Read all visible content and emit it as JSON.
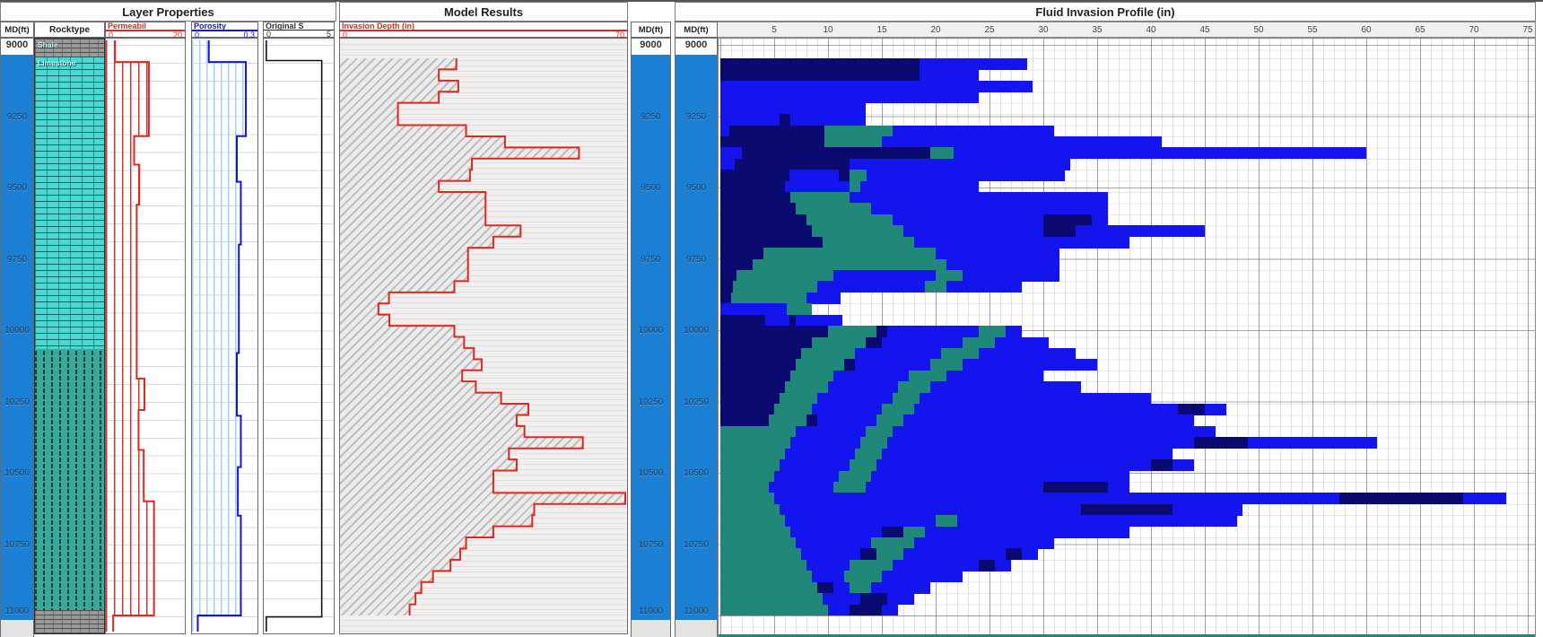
{
  "panels": {
    "layer_properties": {
      "title": "Layer Properties",
      "md_header": "MD(ft)",
      "rock_header": "Rocktype",
      "perm": {
        "name": "Permeabil",
        "min": "0",
        "max": "20"
      },
      "poro": {
        "name": "Porosity",
        "min": "0",
        "max": "0.3"
      },
      "origs": {
        "name": "Original S",
        "min": "0",
        "max": "5"
      }
    },
    "model_results": {
      "title": "Model Results",
      "md_header": "MD(ft)",
      "track": {
        "name": "Invasion Depth (in)",
        "min": "0",
        "max": "70"
      }
    },
    "fluid_profile": {
      "title": "Fluid Invasion Profile (in)",
      "md_header": "MD(ft)",
      "x_ticks": [
        "5",
        "10",
        "15",
        "20",
        "25",
        "30",
        "35",
        "40",
        "45",
        "50",
        "55",
        "60",
        "65",
        "70",
        "75"
      ]
    }
  },
  "depth_axis": {
    "top_label": "9000",
    "labels": [
      "9250",
      "9500",
      "9750",
      "10000",
      "10250",
      "10500",
      "10750",
      "11000"
    ],
    "start_ft": 9000,
    "end_ft": 11000
  },
  "colors": {
    "n": "#0a0a70",
    "b": "#1414ee",
    "t": "#1f8878",
    "md_blue": "#1b80d4",
    "curve_red": "#e02820",
    "curve_blue": "#1414dd",
    "curve_black": "#111111"
  },
  "chart_data": {
    "type": "heatmap",
    "title": "Fluid Invasion Profile (in)",
    "depth_range_ft": [
      9000,
      11000
    ],
    "x_range_in": [
      0,
      75
    ],
    "rocktype_intervals": [
      {
        "label": "Shale",
        "from_ft": 8980,
        "to_ft": 9060,
        "pattern": "shale"
      },
      {
        "label": "Limestone",
        "from_ft": 9060,
        "to_ft": 10085,
        "pattern": "limestone"
      },
      {
        "label": "",
        "from_ft": 10085,
        "to_ft": 11000,
        "pattern": "limestone2"
      },
      {
        "label": "",
        "from_ft": 11000,
        "to_ft": 11090,
        "pattern": "shale"
      }
    ],
    "permeability_md": {
      "min": 0,
      "max": 20,
      "steps": [
        [
          8980,
          2
        ],
        [
          9060,
          11.2
        ],
        [
          9320,
          7.2
        ],
        [
          9420,
          8.6
        ],
        [
          9560,
          7.9
        ],
        [
          10170,
          10
        ],
        [
          10280,
          8.4
        ],
        [
          10420,
          9.8
        ],
        [
          10600,
          12.6
        ],
        [
          11000,
          1.5
        ],
        [
          11090,
          1.5
        ]
      ]
    },
    "porosity_frac": {
      "min": 0,
      "max": 0.3,
      "steps": [
        [
          8980,
          0.075
        ],
        [
          9060,
          0.26
        ],
        [
          9320,
          0.215
        ],
        [
          9480,
          0.235
        ],
        [
          9700,
          0.225
        ],
        [
          10080,
          0.215
        ],
        [
          10300,
          0.235
        ],
        [
          10480,
          0.22
        ],
        [
          10650,
          0.235
        ],
        [
          11000,
          0.02
        ],
        [
          11090,
          0.02
        ]
      ]
    },
    "original_s": {
      "min": 0,
      "max": 5,
      "steps": [
        [
          8980,
          0.06
        ],
        [
          9055,
          4.35
        ],
        [
          11005,
          0.06
        ],
        [
          11090,
          0.06
        ]
      ]
    },
    "invasion_depth_in": {
      "min": 0,
      "max": 70,
      "note": "step curve equals total extent of each fluid row"
    },
    "fluid_rows": {
      "depth_start_ft": 9000,
      "row_height_ft": 40,
      "segment_format": "[colorKey, end_inches] cumulative from 0",
      "rows": [
        [
          [
            "n",
            18.5
          ],
          [
            "b",
            28.5
          ]
        ],
        [
          [
            "n",
            18.5
          ],
          [
            "b",
            24
          ]
        ],
        [
          [
            "b",
            29
          ]
        ],
        [
          [
            "b",
            24
          ]
        ],
        [
          [
            "b",
            13.5
          ]
        ],
        [
          [
            "b",
            5.5
          ],
          [
            "n",
            6.5
          ],
          [
            "b",
            13.5
          ]
        ],
        [
          [
            "b",
            0.8
          ],
          [
            "n",
            9.7
          ],
          [
            "t",
            16
          ],
          [
            "b",
            31
          ]
        ],
        [
          [
            "n",
            9.7
          ],
          [
            "t",
            15
          ],
          [
            "b",
            41
          ]
        ],
        [
          [
            "b",
            2
          ],
          [
            "n",
            19.5
          ],
          [
            "t",
            21.7
          ],
          [
            "b",
            60
          ]
        ],
        [
          [
            "b",
            1.3
          ],
          [
            "n",
            12
          ],
          [
            "b",
            32.5
          ]
        ],
        [
          [
            "n",
            6.4
          ],
          [
            "b",
            11
          ],
          [
            "n",
            12
          ],
          [
            "t",
            13.6
          ],
          [
            "b",
            32
          ]
        ],
        [
          [
            "n",
            6
          ],
          [
            "b",
            12
          ],
          [
            "t",
            13
          ],
          [
            "b",
            24
          ]
        ],
        [
          [
            "n",
            6.5
          ],
          [
            "t",
            12
          ],
          [
            "b",
            36
          ]
        ],
        [
          [
            "n",
            7
          ],
          [
            "t",
            14
          ],
          [
            "b",
            36
          ]
        ],
        [
          [
            "n",
            8
          ],
          [
            "t",
            16
          ],
          [
            "b",
            30
          ],
          [
            "n",
            34.5
          ],
          [
            "b",
            36
          ]
        ],
        [
          [
            "n",
            8.5
          ],
          [
            "t",
            17
          ],
          [
            "b",
            30
          ],
          [
            "n",
            33
          ],
          [
            "b",
            45
          ]
        ],
        [
          [
            "n",
            9.5
          ],
          [
            "t",
            18
          ],
          [
            "b",
            38
          ]
        ],
        [
          [
            "n",
            4
          ],
          [
            "t",
            20
          ],
          [
            "b",
            31.5
          ]
        ],
        [
          [
            "n",
            3
          ],
          [
            "t",
            21
          ],
          [
            "b",
            31.5
          ]
        ],
        [
          [
            "n",
            1.5
          ],
          [
            "t",
            10.5
          ],
          [
            "b",
            20
          ],
          [
            "t",
            22.5
          ],
          [
            "b",
            31.5
          ]
        ],
        [
          [
            "n",
            1.2
          ],
          [
            "t",
            9
          ],
          [
            "b",
            19
          ],
          [
            "t",
            21
          ],
          [
            "b",
            28
          ]
        ],
        [
          [
            "n",
            1
          ],
          [
            "t",
            8
          ],
          [
            "b",
            11.2
          ]
        ],
        [
          [
            "b",
            6.2
          ],
          [
            "t",
            8.5
          ]
        ],
        [
          [
            "n",
            4.2
          ],
          [
            "b",
            6.4
          ],
          [
            "n",
            7
          ],
          [
            "b",
            11.3
          ]
        ],
        [
          [
            "n",
            10
          ],
          [
            "t",
            14.5
          ],
          [
            "n",
            15.5
          ],
          [
            "b",
            24
          ],
          [
            "t",
            26.5
          ],
          [
            "b",
            28
          ]
        ],
        [
          [
            "n",
            8.5
          ],
          [
            "t",
            13.5
          ],
          [
            "n",
            15
          ],
          [
            "b",
            22.5
          ],
          [
            "t",
            25.5
          ],
          [
            "b",
            30.5
          ]
        ],
        [
          [
            "n",
            7.5
          ],
          [
            "t",
            12.5
          ],
          [
            "b",
            20.5
          ],
          [
            "t",
            24
          ],
          [
            "b",
            33
          ]
        ],
        [
          [
            "n",
            7
          ],
          [
            "t",
            11.5
          ],
          [
            "n",
            12.5
          ],
          [
            "b",
            19.5
          ],
          [
            "t",
            22.5
          ],
          [
            "b",
            35
          ]
        ],
        [
          [
            "n",
            6.5
          ],
          [
            "t",
            10.5
          ],
          [
            "b",
            17.5
          ],
          [
            "t",
            21
          ],
          [
            "b",
            30
          ]
        ],
        [
          [
            "n",
            6
          ],
          [
            "t",
            10
          ],
          [
            "b",
            16.5
          ],
          [
            "t",
            19.5
          ],
          [
            "b",
            33.5
          ]
        ],
        [
          [
            "n",
            5.5
          ],
          [
            "t",
            9
          ],
          [
            "b",
            16
          ],
          [
            "t",
            18.5
          ],
          [
            "b",
            40
          ]
        ],
        [
          [
            "n",
            5
          ],
          [
            "t",
            8.5
          ],
          [
            "b",
            15
          ],
          [
            "t",
            18
          ],
          [
            "b",
            42.5
          ],
          [
            "n",
            45
          ],
          [
            "b",
            47
          ]
        ],
        [
          [
            "n",
            4.5
          ],
          [
            "t",
            8
          ],
          [
            "n",
            9
          ],
          [
            "b",
            14.5
          ],
          [
            "t",
            17
          ],
          [
            "b",
            44
          ]
        ],
        [
          [
            "t",
            7
          ],
          [
            "b",
            13.5
          ],
          [
            "t",
            16
          ],
          [
            "b",
            46
          ]
        ],
        [
          [
            "t",
            6.5
          ],
          [
            "b",
            13
          ],
          [
            "t",
            15.5
          ],
          [
            "b",
            44
          ],
          [
            "n",
            49
          ],
          [
            "b",
            61
          ]
        ],
        [
          [
            "t",
            6
          ],
          [
            "b",
            12.5
          ],
          [
            "t",
            15
          ],
          [
            "b",
            42
          ]
        ],
        [
          [
            "t",
            5.5
          ],
          [
            "b",
            12
          ],
          [
            "t",
            14.5
          ],
          [
            "b",
            40
          ],
          [
            "n",
            42
          ],
          [
            "b",
            44
          ]
        ],
        [
          [
            "t",
            5
          ],
          [
            "b",
            11
          ],
          [
            "t",
            14
          ],
          [
            "b",
            38
          ]
        ],
        [
          [
            "t",
            4.5
          ],
          [
            "b",
            10.5
          ],
          [
            "t",
            13.5
          ],
          [
            "b",
            30
          ],
          [
            "n",
            36
          ],
          [
            "b",
            38
          ]
        ],
        [
          [
            "t",
            5
          ],
          [
            "b",
            57.5
          ],
          [
            "n",
            69
          ],
          [
            "b",
            73
          ]
        ],
        [
          [
            "t",
            5.5
          ],
          [
            "b",
            33.5
          ],
          [
            "n",
            42
          ],
          [
            "b",
            48.5
          ]
        ],
        [
          [
            "t",
            6
          ],
          [
            "b",
            20
          ],
          [
            "t",
            22
          ],
          [
            "b",
            48
          ]
        ],
        [
          [
            "t",
            6.5
          ],
          [
            "b",
            15
          ],
          [
            "n",
            17
          ],
          [
            "t",
            19
          ],
          [
            "b",
            38
          ]
        ],
        [
          [
            "t",
            7
          ],
          [
            "b",
            14
          ],
          [
            "t",
            18
          ],
          [
            "b",
            31
          ]
        ],
        [
          [
            "t",
            7.5
          ],
          [
            "b",
            13
          ],
          [
            "n",
            14.5
          ],
          [
            "t",
            17
          ],
          [
            "b",
            26.5
          ],
          [
            "n",
            28
          ],
          [
            "b",
            29.5
          ]
        ],
        [
          [
            "t",
            8
          ],
          [
            "b",
            12
          ],
          [
            "t",
            16
          ],
          [
            "b",
            24
          ],
          [
            "n",
            25.5
          ],
          [
            "b",
            27
          ]
        ],
        [
          [
            "t",
            8.5
          ],
          [
            "b",
            11.5
          ],
          [
            "t",
            15
          ],
          [
            "b",
            22.5
          ]
        ],
        [
          [
            "t",
            9
          ],
          [
            "n",
            10.5
          ],
          [
            "b",
            12
          ],
          [
            "t",
            14
          ],
          [
            "b",
            19.5
          ]
        ],
        [
          [
            "t",
            9.5
          ],
          [
            "b",
            13
          ],
          [
            "n",
            15.5
          ],
          [
            "b",
            18
          ]
        ],
        [
          [
            "t",
            10
          ],
          [
            "b",
            12
          ],
          [
            "n",
            15
          ],
          [
            "b",
            16.5
          ]
        ]
      ]
    }
  }
}
